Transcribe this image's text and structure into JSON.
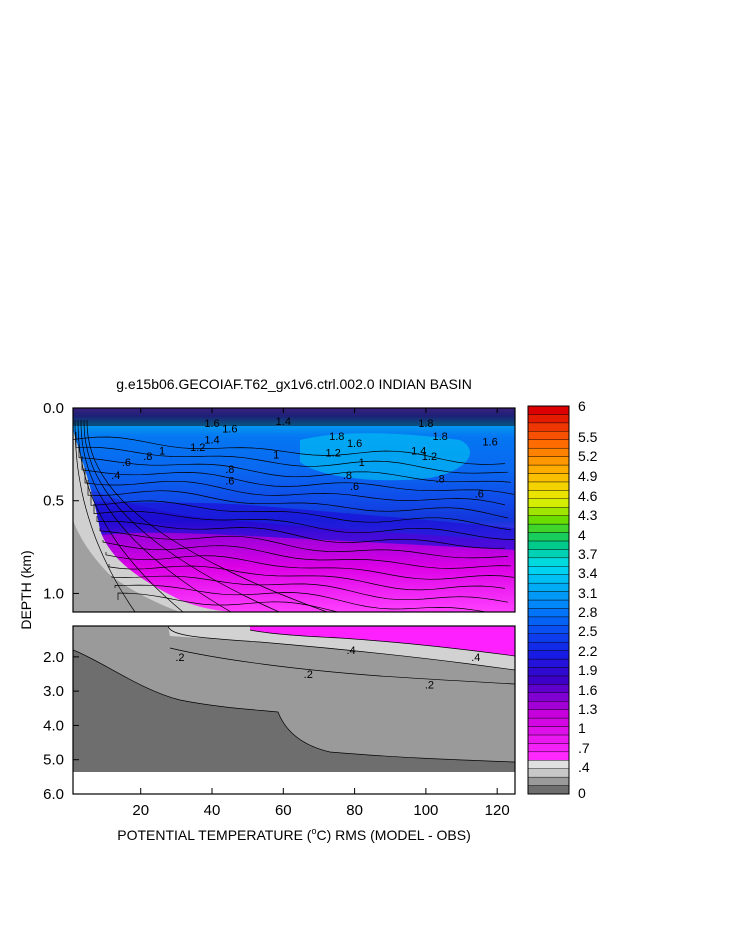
{
  "chart_data": {
    "type": "contour",
    "title": "g.e15b06.GECOIAF.T62_gx1v6.ctrl.002.0 INDIAN BASIN",
    "xlabel_pre": "POTENTIAL TEMPERATURE (",
    "xlabel_sup": "o",
    "xlabel_post": "C) RMS (MODEL - OBS)",
    "ylabel": "DEPTH (km)",
    "xlim": [
      1,
      125
    ],
    "x_ticks": [
      20,
      40,
      60,
      80,
      100,
      120
    ],
    "x_tick_labels": [
      "20",
      "40",
      "60",
      "80",
      "100",
      "120"
    ],
    "upper_panel": {
      "ylim": [
        0.0,
        1.1
      ],
      "y_ticks": [
        0.0,
        0.5,
        1.0
      ],
      "y_tick_labels": [
        "0.0",
        "0.5",
        "1.0"
      ]
    },
    "lower_panel": {
      "ylim": [
        1.1,
        6.0
      ],
      "y_ticks": [
        2.0,
        3.0,
        4.0,
        5.0,
        6.0
      ],
      "y_tick_labels": [
        "2.0",
        "3.0",
        "4.0",
        "5.0",
        "6.0"
      ]
    },
    "colorbar": {
      "levels": [
        0,
        0.1,
        0.2,
        0.3,
        0.4,
        0.5,
        0.6,
        0.7,
        0.8,
        0.9,
        1.0,
        1.1,
        1.2,
        1.3,
        1.4,
        1.5,
        1.6,
        1.7,
        1.8,
        1.9,
        2.0,
        2.1,
        2.2,
        2.3,
        2.4,
        2.5,
        2.6,
        2.7,
        2.8,
        2.9,
        3.0,
        3.1,
        3.2,
        3.3,
        3.4,
        3.5,
        3.6,
        3.7,
        3.8,
        3.9,
        4.0,
        4.3,
        4.6,
        4.9,
        5.2,
        5.5,
        6.0
      ],
      "labels": [
        "6",
        "5.5",
        "5.2",
        "4.9",
        "4.6",
        "4.3",
        "4",
        "3.7",
        "3.4",
        "3.1",
        "2.8",
        "2.5",
        "2.2",
        "1.9",
        "1.6",
        "1.3",
        "1",
        ".7",
        ".4",
        "0"
      ]
    },
    "contour_labels_upper": [
      {
        "text": "1.6",
        "x": 40,
        "y": 0.08
      },
      {
        "text": "1.4",
        "x": 60,
        "y": 0.07
      },
      {
        "text": "1.6",
        "x": 45,
        "y": 0.11
      },
      {
        "text": "1.8",
        "x": 75,
        "y": 0.15
      },
      {
        "text": "1.8",
        "x": 100,
        "y": 0.08
      },
      {
        "text": "1.8",
        "x": 104,
        "y": 0.15
      },
      {
        "text": "1.6",
        "x": 118,
        "y": 0.18
      },
      {
        "text": "1.6",
        "x": 80,
        "y": 0.19
      },
      {
        "text": "1.4",
        "x": 40,
        "y": 0.17
      },
      {
        "text": "1.2",
        "x": 36,
        "y": 0.21
      },
      {
        "text": "1.2",
        "x": 74,
        "y": 0.24
      },
      {
        "text": "1.4",
        "x": 98,
        "y": 0.23
      },
      {
        "text": "1.2",
        "x": 101,
        "y": 0.26
      },
      {
        "text": "1",
        "x": 26,
        "y": 0.23
      },
      {
        "text": "1",
        "x": 58,
        "y": 0.25
      },
      {
        "text": "1",
        "x": 82,
        "y": 0.29
      },
      {
        "text": ".8",
        "x": 22,
        "y": 0.26
      },
      {
        "text": ".6",
        "x": 16,
        "y": 0.29
      },
      {
        "text": ".8",
        "x": 45,
        "y": 0.33
      },
      {
        "text": ".8",
        "x": 78,
        "y": 0.36
      },
      {
        "text": ".8",
        "x": 104,
        "y": 0.38
      },
      {
        "text": ".6",
        "x": 45,
        "y": 0.39
      },
      {
        "text": ".6",
        "x": 80,
        "y": 0.42
      },
      {
        "text": ".6",
        "x": 115,
        "y": 0.46
      },
      {
        "text": ".4",
        "x": 13,
        "y": 0.36
      }
    ],
    "contour_labels_lower": [
      {
        "text": ".2",
        "x": 31,
        "y": 2.0
      },
      {
        "text": ".4",
        "x": 79,
        "y": 1.8
      },
      {
        "text": ".4",
        "x": 114,
        "y": 2.0
      },
      {
        "text": ".2",
        "x": 67,
        "y": 2.5
      },
      {
        "text": ".2",
        "x": 101,
        "y": 2.8
      }
    ]
  }
}
